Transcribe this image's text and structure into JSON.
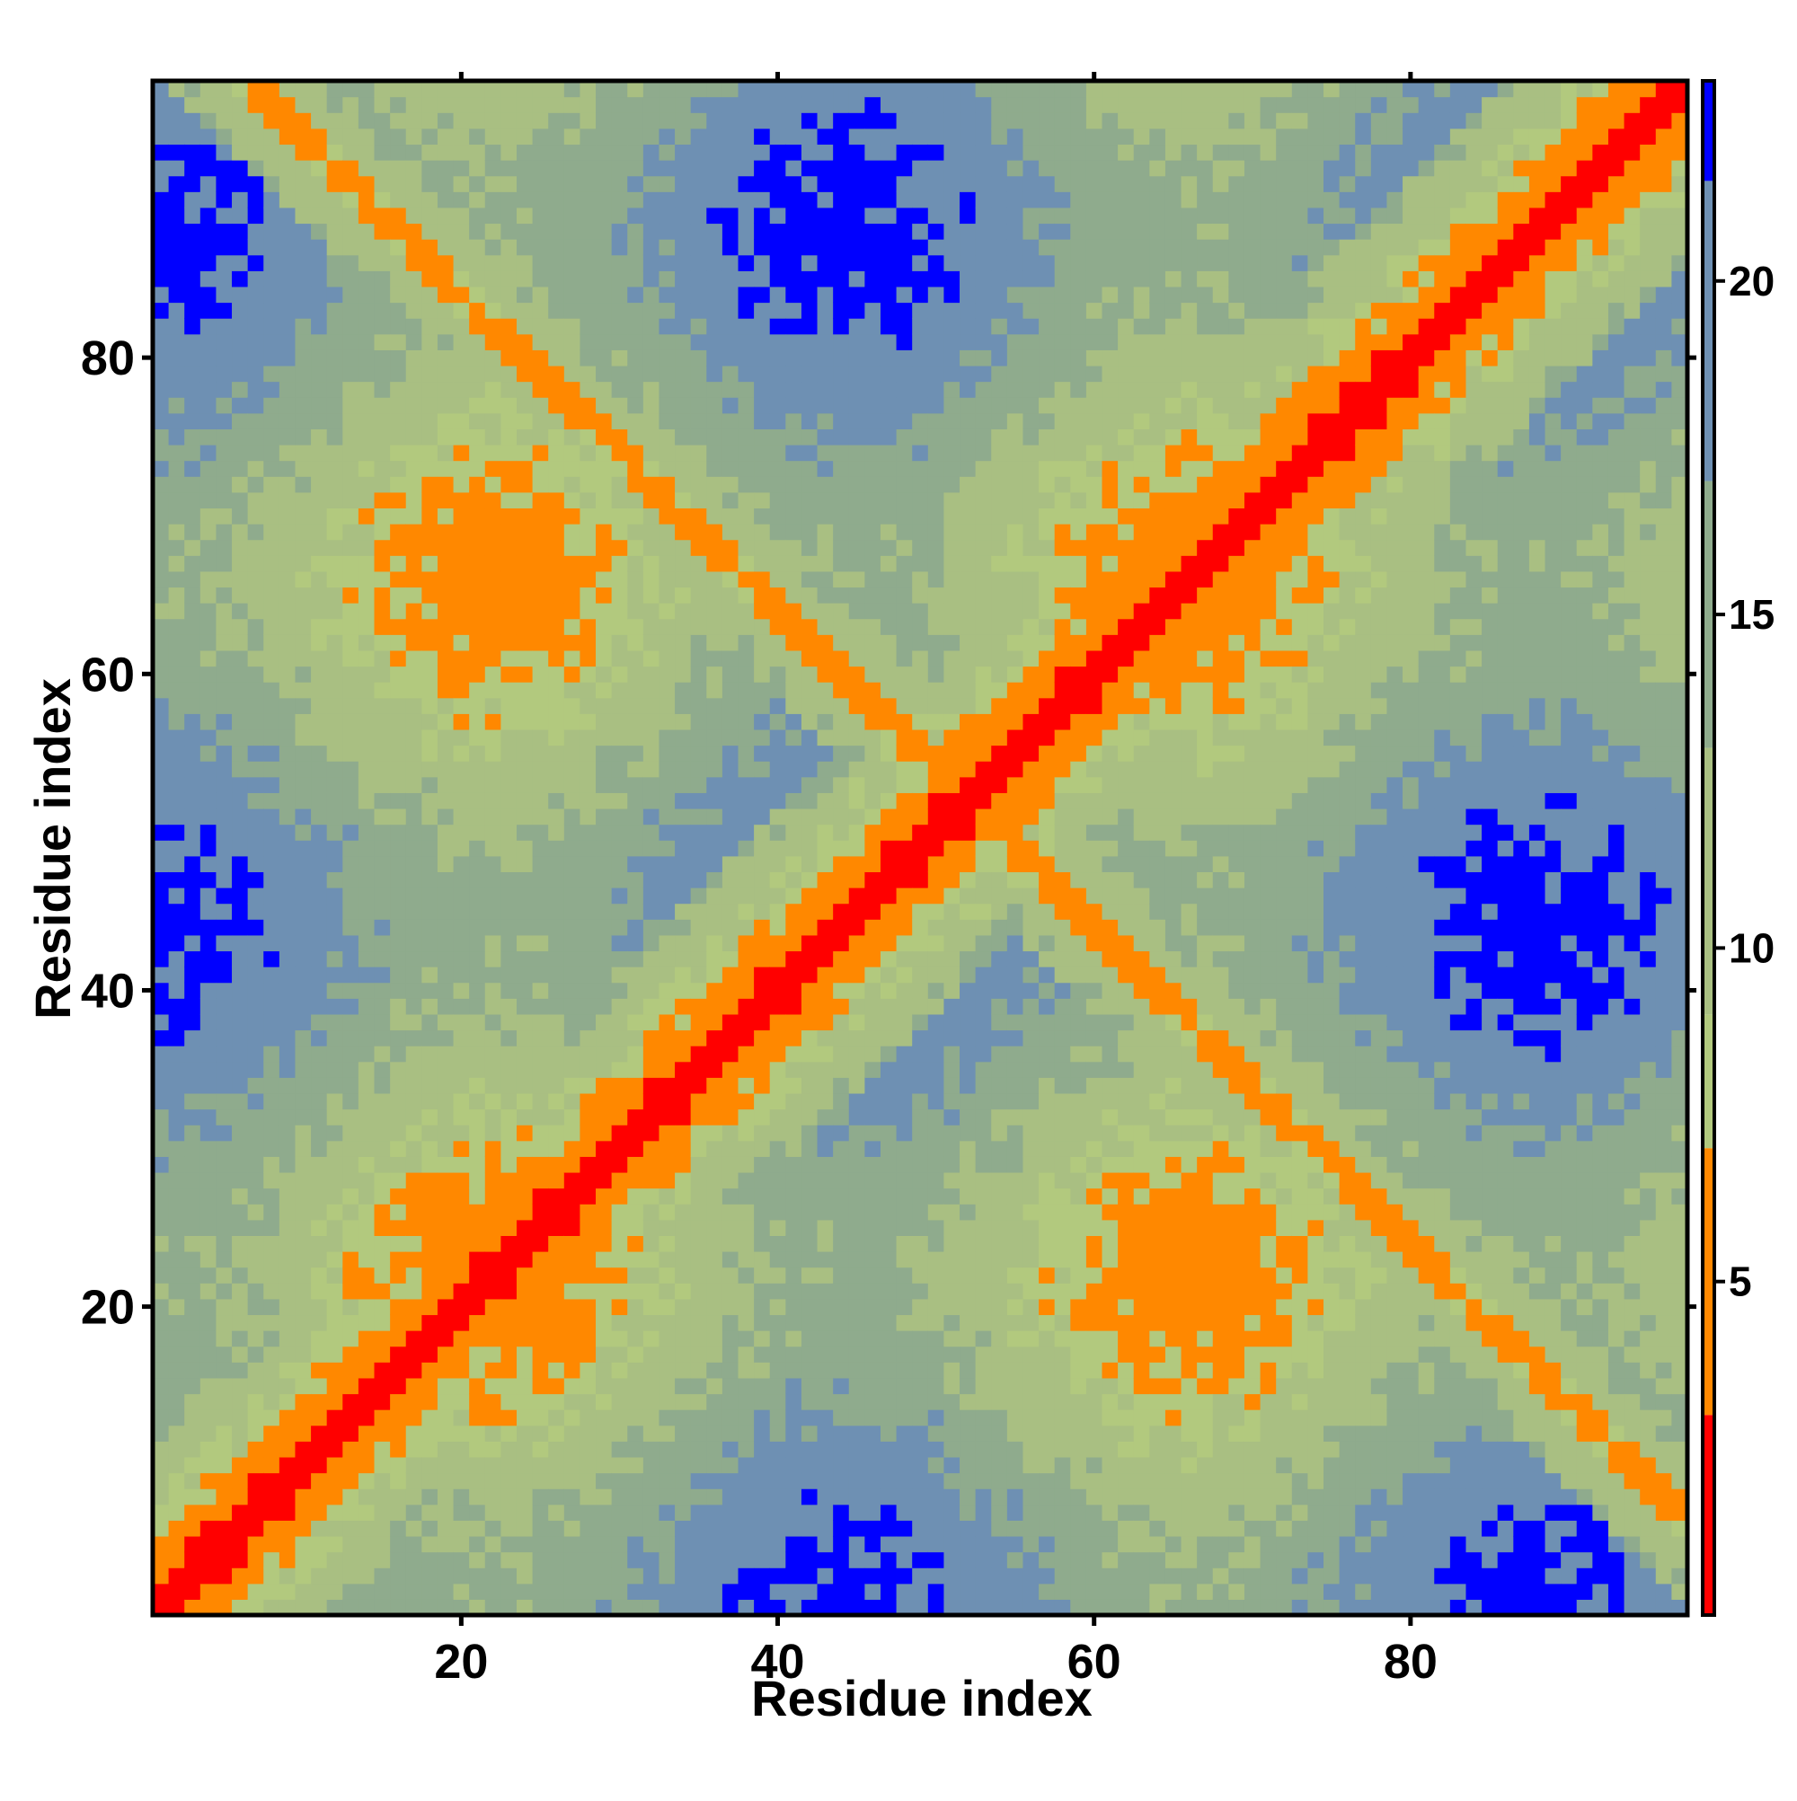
{
  "chart_data": {
    "type": "heatmap",
    "title": "",
    "xlabel": "Residue index",
    "ylabel": "Residue index",
    "xlim": [
      1,
      97
    ],
    "ylim": [
      1,
      97
    ],
    "xticks": [
      20,
      40,
      60,
      80
    ],
    "yticks": [
      20,
      40,
      60,
      80
    ],
    "n_residues": 97,
    "colorbar": {
      "ticks": [
        5,
        10,
        15,
        20
      ],
      "range": [
        0,
        23
      ],
      "bins": [
        {
          "from": 0,
          "to": 3,
          "color": "#ff0000"
        },
        {
          "from": 3,
          "to": 7,
          "color": "#ff8800"
        },
        {
          "from": 7,
          "to": 9,
          "color": "#b2c97e"
        },
        {
          "from": 9,
          "to": 13,
          "color": "#a9bf82"
        },
        {
          "from": 13,
          "to": 17,
          "color": "#8fab8d"
        },
        {
          "from": 17,
          "to": 21.5,
          "color": "#6e90b3"
        },
        {
          "from": 21.5,
          "to": 23,
          "color": "#0000ff"
        }
      ]
    },
    "grid": false,
    "legend": "colorbar-right",
    "description_of_values": "Symmetric inter-residue distance matrix; diagonal band of near-zero values (red), off-diagonal anti-diagonal contact bands (orange), large blue domains of distances beyond 21.5"
  }
}
